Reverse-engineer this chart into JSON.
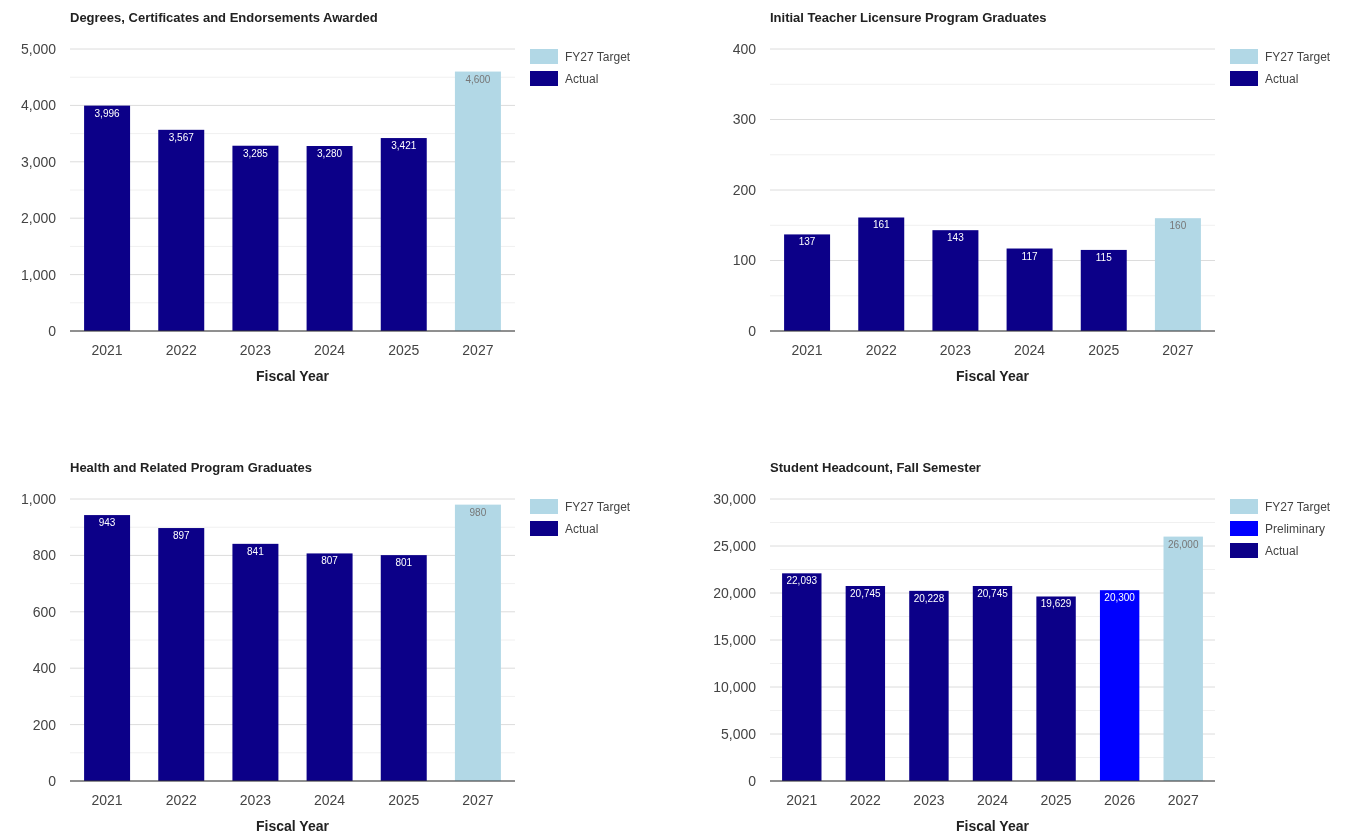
{
  "chart_data": [
    {
      "type": "bar",
      "title": "Degrees, Certificates and Endorsements Awarded",
      "xlabel": "Fiscal Year",
      "categories": [
        "2021",
        "2022",
        "2023",
        "2024",
        "2025",
        "2027"
      ],
      "grid": "y",
      "legend": "top right",
      "ylim": [
        0,
        5000
      ],
      "yticks": [
        0,
        {
          "value": 500,
          "label": null
        },
        {
          "value": 1000,
          "label": "1,000"
        },
        {
          "value": 1500,
          "label": null
        },
        {
          "value": 2000,
          "label": "2,000"
        },
        {
          "value": 2500,
          "label": null
        },
        {
          "value": 3000,
          "label": "3,000"
        },
        {
          "value": 3500,
          "label": null
        },
        {
          "value": 4000,
          "label": "4,000"
        },
        {
          "value": 4500,
          "label": null
        },
        {
          "value": 5000,
          "label": "5,000"
        }
      ],
      "series": [
        {
          "name": "Actual",
          "color": "#0c0088",
          "values": [
            3996,
            3567,
            3285,
            3280,
            3421,
            null
          ],
          "value_labels": [
            "3,996",
            "3,567",
            "3,285",
            "3,280",
            "3,421",
            null
          ]
        },
        {
          "name": "FY27 Target",
          "color": "#b2d8e6",
          "values": [
            null,
            null,
            null,
            null,
            null,
            4600
          ],
          "value_labels": [
            null,
            null,
            null,
            null,
            null,
            "4,600"
          ]
        }
      ]
    },
    {
      "type": "bar",
      "title": "Initial Teacher Licensure Program Graduates",
      "xlabel": "Fiscal Year",
      "categories": [
        "2021",
        "2022",
        "2023",
        "2024",
        "2025",
        "2027"
      ],
      "data_labels": true,
      "grid": "y",
      "legend": "top right",
      "ylim": [
        0,
        400
      ],
      "yticks": [
        0,
        {
          "value": 50,
          "label": null
        },
        100,
        {
          "value": 150,
          "label": null
        },
        200,
        {
          "value": 250,
          "label": null
        },
        300,
        {
          "value": 350,
          "label": null
        },
        400
      ],
      "series": [
        {
          "name": "Actual",
          "color": "#0c0088",
          "values": [
            137,
            161,
            143,
            117,
            115,
            null
          ]
        },
        {
          "name": "FY27 Target",
          "color": "#b2d8e6",
          "values": [
            null,
            null,
            null,
            null,
            null,
            160
          ]
        }
      ]
    },
    {
      "type": "bar",
      "title": "Health and Related Program Graduates",
      "xlabel": "Fiscal Year",
      "categories": [
        "2021",
        "2022",
        "2023",
        "2024",
        "2025",
        "2027"
      ],
      "data_labels": true,
      "grid": "y",
      "legend": "top right",
      "ylim": [
        0,
        1000
      ],
      "yticks": [
        0,
        {
          "value": 100,
          "label": null
        },
        200,
        {
          "value": 300,
          "label": null
        },
        400,
        {
          "value": 500,
          "label": null
        },
        600,
        {
          "value": 700,
          "label": null
        },
        800,
        {
          "value": 900,
          "label": null
        },
        {
          "value": 1000,
          "label": "1,000"
        }
      ],
      "series": [
        {
          "name": "Actual",
          "color": "#0c0088",
          "values": [
            943,
            897,
            841,
            807,
            801,
            null
          ]
        },
        {
          "name": "FY27 Target",
          "color": "#b2d8e6",
          "values": [
            null,
            null,
            null,
            null,
            null,
            980
          ]
        }
      ]
    },
    {
      "type": "bar",
      "title": "Student Headcount, Fall Semester",
      "xlabel": "Fiscal Year",
      "categories": [
        "2021",
        "2022",
        "2023",
        "2024",
        "2025",
        "2026",
        "2027"
      ],
      "grid": "y",
      "legend": "top right",
      "ylim": [
        0,
        30000
      ],
      "yticks": [
        0,
        {
          "value": 2500,
          "label": null
        },
        {
          "value": 5000,
          "label": "5,000"
        },
        {
          "value": 7500,
          "label": null
        },
        {
          "value": 10000,
          "label": "10,000"
        },
        {
          "value": 12500,
          "label": null
        },
        {
          "value": 15000,
          "label": "15,000"
        },
        {
          "value": 17500,
          "label": null
        },
        {
          "value": 20000,
          "label": "20,000"
        },
        {
          "value": 22500,
          "label": null
        },
        {
          "value": 25000,
          "label": "25,000"
        },
        {
          "value": 27500,
          "label": null
        },
        {
          "value": 30000,
          "label": "30,000"
        }
      ],
      "series": [
        {
          "name": "Actual",
          "color": "#0c0088",
          "values": [
            22093,
            20745,
            20228,
            20745,
            19629,
            null,
            null
          ],
          "value_labels": [
            "22,093",
            "20,745",
            "20,228",
            "20,745",
            "19,629",
            null,
            null
          ]
        },
        {
          "name": "Preliminary",
          "color": "#0000ff",
          "values": [
            null,
            null,
            null,
            null,
            null,
            20300,
            null
          ],
          "value_labels": [
            null,
            null,
            null,
            null,
            null,
            "20,300",
            null
          ]
        },
        {
          "name": "FY27 Target",
          "color": "#b2d8e6",
          "values": [
            null,
            null,
            null,
            null,
            null,
            null,
            26000
          ],
          "value_labels": [
            null,
            null,
            null,
            null,
            null,
            null,
            "26,000"
          ]
        }
      ]
    }
  ]
}
